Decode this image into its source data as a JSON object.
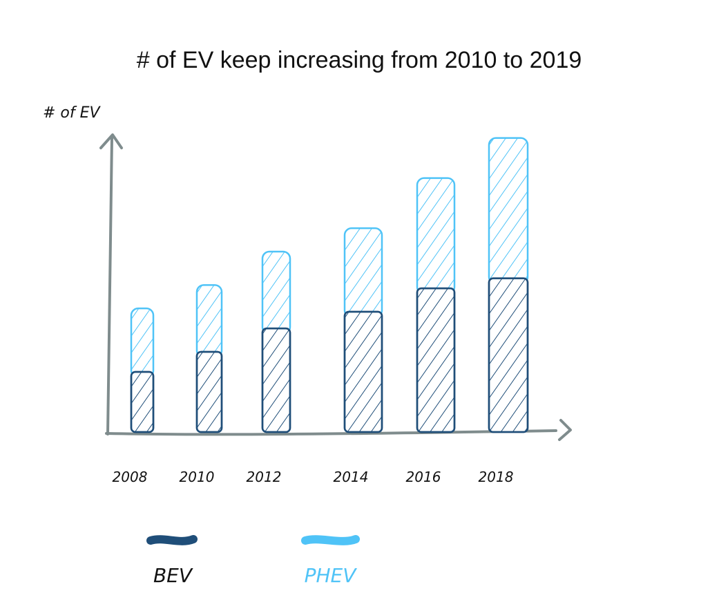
{
  "chart_data": {
    "type": "bar",
    "stacked": true,
    "title": "# of EV keep increasing from 2010 to 2019",
    "ylabel": "# of EV",
    "xlabel": "",
    "categories": [
      "2008",
      "2010",
      "2012",
      "2014",
      "2016",
      "2018"
    ],
    "series": [
      {
        "name": "BEV",
        "color": "#1f4e79",
        "values": [
          90,
          120,
          155,
          180,
          215,
          230
        ]
      },
      {
        "name": "PHEV",
        "color": "#4fc3f7",
        "values": [
          95,
          100,
          115,
          125,
          165,
          210
        ]
      }
    ],
    "ylim": [
      0,
      450
    ],
    "grid": false,
    "legend_position": "bottom",
    "axis_color": "#7f8c8d"
  }
}
